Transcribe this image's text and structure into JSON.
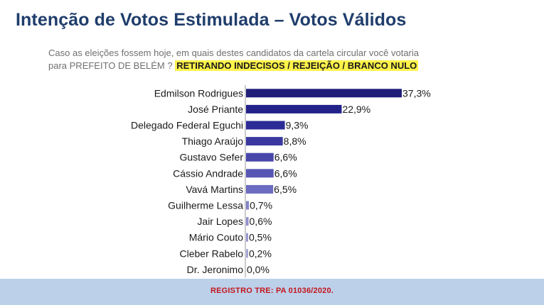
{
  "title": "Intenção de Votos Estimulada – Votos Válidos",
  "question": {
    "line1": "Caso as eleições fossem hoje, em quais destes candidatos da cartela circular você votaria",
    "line2": "para PREFEITO DE BELÉM ?",
    "highlight": "RETIRANDO INDECISOS / REJEIÇÃO / BRANCO NULO"
  },
  "footer": {
    "registration": "REGISTRO TRE: PA 01036/2020."
  },
  "chart_data": {
    "type": "bar",
    "orientation": "horizontal",
    "categories": [
      "Edmilson Rodrigues",
      "José Priante",
      "Delegado Federal Eguchi",
      "Thiago Araújo",
      "Gustavo Sefer",
      "Cássio Andrade",
      "Vavá Martins",
      "Guilherme Lessa",
      "Jair Lopes",
      "Mário Couto",
      "Cleber Rabelo",
      "Dr. Jeronimo"
    ],
    "values": [
      37.3,
      22.9,
      9.3,
      8.8,
      6.6,
      6.6,
      6.5,
      0.7,
      0.6,
      0.5,
      0.2,
      0.0
    ],
    "labels": [
      "37,3%",
      "22,9%",
      "9,3%",
      "8,8%",
      "6,6%",
      "6,6%",
      "6,5%",
      "0,7%",
      "0,6%",
      "0,5%",
      "0,2%",
      "0,0%"
    ],
    "colors": [
      "#1f1f7a",
      "#22228a",
      "#2c2c96",
      "#3838a0",
      "#4747aa",
      "#5656b4",
      "#6b6bbf",
      "#8484c9",
      "#8f8fcf",
      "#9999d4",
      "#a6a6da",
      "#b3b3e0"
    ],
    "xlim": [
      0,
      40
    ],
    "grid": false,
    "legend": "none"
  }
}
